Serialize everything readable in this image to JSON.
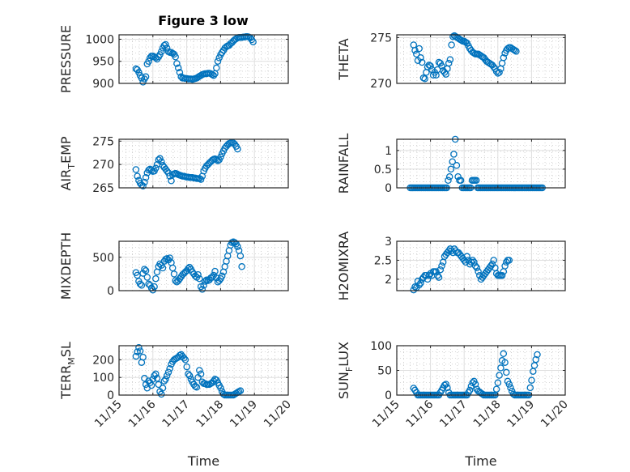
{
  "figure": {
    "title": "Figure 3 low"
  },
  "colors": {
    "marker": "#0072BD",
    "axis": "#262626",
    "grid_major": "#dfdfdf",
    "grid_minor": "#b0b0b0"
  },
  "chart_data": [
    {
      "type": "scatter",
      "name": "pressure",
      "title": "Figure 3 low",
      "ylabel": "PRESSURE",
      "ylabel_parts": [
        {
          "t": "PRESSURE",
          "sub": false
        }
      ],
      "xlabel": "",
      "ylim": [
        900,
        1010
      ],
      "yticks": [
        900,
        950,
        1000
      ],
      "ytick_labels": [
        "900",
        "950",
        "1000"
      ],
      "xlim": [
        15,
        20
      ],
      "xticks": [
        15,
        16,
        17,
        18,
        19,
        20
      ],
      "xtick_labels": [
        "11/15",
        "11/16",
        "11/17",
        "11/18",
        "11/19",
        "11/20"
      ],
      "show_xtick_labels": false,
      "grid": true,
      "x_start": 15.5,
      "x_step": 0.0417,
      "y": [
        933,
        931,
        925,
        918,
        912,
        903,
        910,
        915,
        944,
        950,
        958,
        962,
        962,
        960,
        958,
        955,
        960,
        965,
        972,
        980,
        986,
        988,
        980,
        972,
        970,
        970,
        968,
        966,
        960,
        945,
        935,
        925,
        915,
        912,
        912,
        911,
        911,
        910,
        910,
        910,
        909,
        910,
        911,
        912,
        914,
        916,
        918,
        920,
        921,
        922,
        922,
        923,
        923,
        922,
        920,
        918,
        922,
        935,
        950,
        958,
        965,
        970,
        975,
        980,
        983,
        985,
        986,
        990,
        992,
        996,
        999,
        1001,
        1003,
        1004,
        1004,
        1004,
        1005,
        1005,
        1006,
        1006,
        1005,
        1003,
        999,
        994
      ]
    },
    {
      "type": "scatter",
      "name": "theta",
      "ylabel": "THETA",
      "ylabel_parts": [
        {
          "t": "THETA",
          "sub": false
        }
      ],
      "ylim": [
        270,
        275.3
      ],
      "yticks": [
        270,
        275
      ],
      "ytick_labels": [
        "270",
        "275"
      ],
      "xlim": [
        15,
        20
      ],
      "xticks": [
        15,
        16,
        17,
        18,
        19,
        20
      ],
      "xtick_labels": [
        "11/15",
        "11/16",
        "11/17",
        "11/18",
        "11/19",
        "11/20"
      ],
      "show_xtick_labels": false,
      "grid": true,
      "x_start": 15.5,
      "x_step": 0.0417,
      "y": [
        274.2,
        273.6,
        273.2,
        272.5,
        273.8,
        272.8,
        272.3,
        270.6,
        270.5,
        271.2,
        271.8,
        272,
        271.9,
        271.5,
        270.9,
        271.2,
        270.9,
        271.5,
        272.3,
        272.2,
        271.9,
        271.4,
        271.2,
        271,
        271.6,
        272.2,
        272.6,
        274.2,
        275.1,
        275.2,
        275.1,
        275,
        274.9,
        274.8,
        274.7,
        274.6,
        274.6,
        274.5,
        274.4,
        274.1,
        273.8,
        273.6,
        273.4,
        273.3,
        273.2,
        273.2,
        273.2,
        273.1,
        273,
        272.9,
        272.8,
        272.6,
        272.4,
        272.3,
        272.2,
        272.1,
        272,
        271.8,
        271.6,
        271.3,
        271.1,
        271.2,
        271.6,
        272.2,
        272.8,
        273.3,
        273.6,
        273.8,
        273.9,
        273.9,
        273.8,
        273.7,
        273.6,
        273.5
      ]
    },
    {
      "type": "scatter",
      "name": "air_temp",
      "ylabel": "AIR_TEMP",
      "ylabel_parts": [
        {
          "t": "AIR",
          "sub": false
        },
        {
          "t": "T",
          "sub": true
        },
        {
          "t": "EMP",
          "sub": false
        }
      ],
      "ylim": [
        265,
        275.4
      ],
      "yticks": [
        265,
        270,
        275
      ],
      "ytick_labels": [
        "265",
        "270",
        "275"
      ],
      "xlim": [
        15,
        20
      ],
      "xticks": [
        15,
        16,
        17,
        18,
        19,
        20
      ],
      "xtick_labels": [
        "11/15",
        "11/16",
        "11/17",
        "11/18",
        "11/19",
        "11/20"
      ],
      "show_xtick_labels": false,
      "grid": true,
      "x_start": 15.5,
      "x_step": 0.0417,
      "y": [
        268.9,
        267.5,
        266.6,
        266,
        265.6,
        265.4,
        266.2,
        267.2,
        268.2,
        268.8,
        269,
        268.8,
        268.5,
        268.6,
        269.2,
        270,
        271,
        271.3,
        270.6,
        269.8,
        269.4,
        269,
        268.6,
        268.2,
        267.5,
        266.5,
        267.8,
        268,
        268.1,
        268,
        267.8,
        267.7,
        267.6,
        267.5,
        267.5,
        267.4,
        267.3,
        267.3,
        267.2,
        267.2,
        267.2,
        267.1,
        267.1,
        267,
        267,
        267,
        266.8,
        267.5,
        268.6,
        269.2,
        269.7,
        270,
        270.3,
        270.6,
        270.9,
        271.1,
        271.2,
        271,
        270.8,
        271,
        271.6,
        272.3,
        272.9,
        273.5,
        273.9,
        274.2,
        274.5,
        274.6,
        274.7,
        274.6,
        274.3,
        273.9,
        273.3
      ]
    },
    {
      "type": "scatter",
      "name": "rainfall",
      "ylabel": "RAINFALL",
      "ylabel_parts": [
        {
          "t": "RAINFALL",
          "sub": false
        }
      ],
      "ylim": [
        0,
        1.3
      ],
      "yticks": [
        0,
        0.5,
        1
      ],
      "ytick_labels": [
        "0",
        "0.5",
        "1"
      ],
      "xlim": [
        15,
        20
      ],
      "xticks": [
        15,
        16,
        17,
        18,
        19,
        20
      ],
      "xtick_labels": [
        "11/15",
        "11/16",
        "11/17",
        "11/18",
        "11/19",
        "11/20"
      ],
      "show_xtick_labels": false,
      "grid": true,
      "x_start": 15.4,
      "x_step": 0.0417,
      "y": [
        0,
        0,
        0,
        0,
        0,
        0,
        0,
        0,
        0,
        0,
        0,
        0,
        0,
        0,
        0,
        0,
        0,
        0,
        0,
        0,
        0,
        0,
        0,
        0,
        0,
        0,
        0,
        0.2,
        0.3,
        0.5,
        0.7,
        0.9,
        1.3,
        0.6,
        0.3,
        0.2,
        0.2,
        0,
        0,
        0,
        0,
        0,
        0,
        0,
        0.2,
        0.2,
        0.2,
        0.2,
        0,
        0,
        0,
        0,
        0,
        0,
        0,
        0,
        0,
        0,
        0,
        0,
        0,
        0,
        0,
        0,
        0,
        0,
        0,
        0,
        0,
        0,
        0,
        0,
        0,
        0,
        0,
        0,
        0,
        0,
        0,
        0,
        0,
        0,
        0,
        0,
        0,
        0,
        0,
        0,
        0,
        0,
        0,
        0,
        0,
        0,
        0
      ]
    },
    {
      "type": "scatter",
      "name": "mixdepth",
      "ylabel": "MIXDEPTH",
      "ylabel_parts": [
        {
          "t": "MIXDEPTH",
          "sub": false
        }
      ],
      "ylim": [
        0,
        740
      ],
      "yticks": [
        0,
        500
      ],
      "ytick_labels": [
        "0",
        "500"
      ],
      "xlim": [
        15,
        20
      ],
      "xticks": [
        15,
        16,
        17,
        18,
        19,
        20
      ],
      "xtick_labels": [
        "11/15",
        "11/16",
        "11/17",
        "11/18",
        "11/19",
        "11/20"
      ],
      "show_xtick_labels": false,
      "grid": true,
      "x_start": 15.5,
      "x_step": 0.0417,
      "y": [
        270,
        230,
        140,
        100,
        80,
        260,
        320,
        300,
        200,
        100,
        80,
        40,
        10,
        60,
        180,
        280,
        360,
        400,
        380,
        340,
        440,
        470,
        480,
        460,
        490,
        420,
        340,
        250,
        150,
        130,
        150,
        180,
        210,
        240,
        260,
        280,
        300,
        330,
        350,
        320,
        280,
        250,
        220,
        200,
        240,
        180,
        60,
        20,
        80,
        140,
        160,
        150,
        160,
        190,
        200,
        230,
        290,
        190,
        130,
        150,
        180,
        220,
        280,
        360,
        440,
        520,
        600,
        680,
        720,
        730,
        720,
        700,
        660,
        600,
        520,
        360
      ]
    },
    {
      "type": "scatter",
      "name": "h2omixra",
      "ylabel": "H2OMIXRA",
      "ylabel_parts": [
        {
          "t": "H2OMIXRA",
          "sub": false
        }
      ],
      "ylim": [
        1.7,
        3.0
      ],
      "yticks": [
        2,
        2.5,
        3
      ],
      "ytick_labels": [
        "2",
        "2.5",
        "3"
      ],
      "xlim": [
        15,
        20
      ],
      "xticks": [
        15,
        16,
        17,
        18,
        19,
        20
      ],
      "xtick_labels": [
        "11/15",
        "11/16",
        "11/17",
        "11/18",
        "11/19",
        "11/20"
      ],
      "show_xtick_labels": false,
      "grid": true,
      "x_start": 15.5,
      "x_step": 0.0417,
      "y": [
        1.72,
        1.8,
        1.78,
        1.95,
        1.85,
        1.9,
        2.0,
        2.05,
        2.1,
        2.1,
        2.0,
        2.1,
        2.15,
        2.1,
        2.2,
        2.2,
        2.2,
        2.1,
        2.05,
        2.25,
        2.35,
        2.45,
        2.6,
        2.65,
        2.7,
        2.75,
        2.8,
        2.75,
        2.7,
        2.8,
        2.75,
        2.7,
        2.7,
        2.65,
        2.6,
        2.55,
        2.5,
        2.45,
        2.6,
        2.5,
        2.4,
        2.45,
        2.5,
        2.45,
        2.35,
        2.3,
        2.2,
        2.1,
        2.0,
        2.05,
        2.1,
        2.15,
        2.2,
        2.25,
        2.3,
        2.35,
        2.4,
        2.5,
        2.3,
        2.15,
        2.1,
        2.1,
        2.1,
        2.1,
        2.2,
        2.35,
        2.45,
        2.5,
        2.5
      ]
    },
    {
      "type": "scatter",
      "name": "terr_msl",
      "ylabel": "TERR_MSL",
      "ylabel_parts": [
        {
          "t": "TERR",
          "sub": false
        },
        {
          "t": "M",
          "sub": true
        },
        {
          "t": "SL",
          "sub": false
        }
      ],
      "xlabel": "Time",
      "ylim": [
        0,
        280
      ],
      "yticks": [
        0,
        100,
        200
      ],
      "ytick_labels": [
        "0",
        "100",
        "200"
      ],
      "xlim": [
        15,
        20
      ],
      "xticks": [
        15,
        16,
        17,
        18,
        19,
        20
      ],
      "xtick_labels": [
        "11/15",
        "11/16",
        "11/17",
        "11/18",
        "11/19",
        "11/20"
      ],
      "show_xtick_labels": true,
      "grid": true,
      "x_start": 15.5,
      "x_step": 0.0417,
      "y": [
        220,
        245,
        270,
        250,
        185,
        215,
        95,
        60,
        40,
        80,
        70,
        55,
        90,
        110,
        120,
        95,
        60,
        20,
        5,
        40,
        80,
        90,
        110,
        130,
        150,
        175,
        190,
        200,
        205,
        210,
        215,
        225,
        230,
        220,
        210,
        200,
        160,
        120,
        110,
        90,
        75,
        60,
        50,
        45,
        100,
        140,
        120,
        75,
        65,
        65,
        60,
        60,
        60,
        65,
        70,
        80,
        90,
        85,
        70,
        55,
        40,
        20,
        5,
        0,
        0,
        0,
        0,
        0,
        0,
        0,
        5,
        10,
        15,
        20,
        25
      ]
    },
    {
      "type": "scatter",
      "name": "sun_flux",
      "ylabel": "SUN_FLUX",
      "ylabel_parts": [
        {
          "t": "SUN",
          "sub": false
        },
        {
          "t": "F",
          "sub": true
        },
        {
          "t": "LUX",
          "sub": false
        }
      ],
      "xlabel": "Time",
      "ylim": [
        0,
        100
      ],
      "yticks": [
        0,
        50,
        100
      ],
      "ytick_labels": [
        "0",
        "50",
        "100"
      ],
      "xlim": [
        15,
        20
      ],
      "xticks": [
        15,
        16,
        17,
        18,
        19,
        20
      ],
      "xtick_labels": [
        "11/15",
        "11/16",
        "11/17",
        "11/18",
        "11/19",
        "11/20"
      ],
      "show_xtick_labels": true,
      "grid": true,
      "x_start": 15.5,
      "x_step": 0.0417,
      "y": [
        14,
        10,
        5,
        0,
        0,
        0,
        0,
        0,
        0,
        0,
        0,
        0,
        0,
        0,
        0,
        0,
        0,
        0,
        0,
        5,
        10,
        15,
        20,
        22,
        15,
        5,
        0,
        0,
        0,
        0,
        0,
        0,
        0,
        0,
        0,
        0,
        0,
        0,
        0,
        5,
        10,
        18,
        25,
        28,
        22,
        12,
        8,
        6,
        4,
        2,
        0,
        0,
        0,
        0,
        0,
        0,
        0,
        0,
        0,
        12,
        25,
        40,
        55,
        70,
        84,
        66,
        46,
        28,
        22,
        15,
        8,
        2,
        0,
        0,
        0,
        0,
        0,
        0,
        0,
        0,
        0,
        0,
        0,
        15,
        30,
        48,
        60,
        72,
        82
      ]
    }
  ]
}
